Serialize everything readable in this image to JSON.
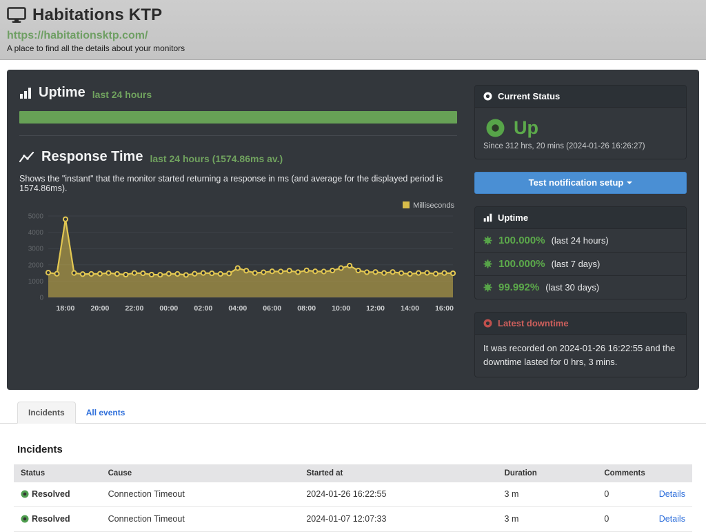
{
  "page": {
    "title": "Habitations KTP",
    "url": "https://habitationsktp.com/",
    "tagline": "A place to find all the details about your monitors"
  },
  "uptime_section": {
    "title": "Uptime",
    "subtitle": "last 24 hours"
  },
  "response_section": {
    "title": "Response Time",
    "subtitle": "last 24 hours (1574.86ms av.)",
    "description": "Shows the \"instant\" that the monitor started returning a response in ms (and average for the displayed period is 1574.86ms)."
  },
  "chart_data": {
    "type": "area",
    "title": "",
    "xlabel": "",
    "ylabel": "",
    "ylim": [
      0,
      5000
    ],
    "yticks": [
      0,
      1000,
      2000,
      3000,
      4000,
      5000
    ],
    "grid": true,
    "legend_position": "top-right",
    "x": [
      "17:00",
      "17:30",
      "18:00",
      "18:30",
      "19:00",
      "19:30",
      "20:00",
      "20:30",
      "21:00",
      "21:30",
      "22:00",
      "22:30",
      "23:00",
      "23:30",
      "00:00",
      "00:30",
      "01:00",
      "01:30",
      "02:00",
      "02:30",
      "03:00",
      "03:30",
      "04:00",
      "04:30",
      "05:00",
      "05:30",
      "06:00",
      "06:30",
      "07:00",
      "07:30",
      "08:00",
      "08:30",
      "09:00",
      "09:30",
      "10:00",
      "10:30",
      "11:00",
      "11:30",
      "12:00",
      "12:30",
      "13:00",
      "13:30",
      "14:00",
      "14:30",
      "15:00",
      "15:30",
      "16:00",
      "16:30"
    ],
    "xticks": [
      "18:00",
      "20:00",
      "22:00",
      "00:00",
      "02:00",
      "04:00",
      "06:00",
      "08:00",
      "10:00",
      "12:00",
      "14:00",
      "16:00"
    ],
    "series": [
      {
        "name": "Milliseconds",
        "color": "#d8bc4a",
        "values": [
          1520,
          1450,
          4800,
          1500,
          1430,
          1440,
          1450,
          1500,
          1440,
          1400,
          1500,
          1480,
          1400,
          1390,
          1450,
          1440,
          1380,
          1450,
          1500,
          1480,
          1440,
          1470,
          1800,
          1640,
          1500,
          1540,
          1600,
          1590,
          1640,
          1550,
          1660,
          1600,
          1590,
          1650,
          1800,
          1950,
          1650,
          1550,
          1560,
          1500,
          1560,
          1490,
          1440,
          1500,
          1510,
          1450,
          1500,
          1480
        ]
      }
    ],
    "average_ms": 1574.86
  },
  "sidebar": {
    "current_status": {
      "header": "Current Status",
      "status": "Up",
      "since": "Since 312 hrs, 20 mins (2024-01-26 16:26:27)"
    },
    "test_button_label": "Test notification setup",
    "uptime_panel": {
      "header": "Uptime",
      "rows": [
        {
          "value": "100.000%",
          "label": "(last 24 hours)"
        },
        {
          "value": "100.000%",
          "label": "(last 7 days)"
        },
        {
          "value": "99.992%",
          "label": "(last 30 days)"
        }
      ]
    },
    "latest_downtime": {
      "header": "Latest downtime",
      "text": "It was recorded on 2024-01-26 16:22:55 and the downtime lasted for 0 hrs, 3 mins."
    }
  },
  "tabs": [
    {
      "label": "Incidents",
      "active": true
    },
    {
      "label": "All events",
      "active": false
    }
  ],
  "incidents": {
    "heading": "Incidents",
    "columns": [
      "Status",
      "Cause",
      "Started at",
      "Duration",
      "Comments",
      ""
    ],
    "rows": [
      {
        "status": "Resolved",
        "cause": "Connection Timeout",
        "started_at": "2024-01-26 16:22:55",
        "duration": "3 m",
        "comments": "0",
        "details": "Details"
      },
      {
        "status": "Resolved",
        "cause": "Connection Timeout",
        "started_at": "2024-01-07 12:07:33",
        "duration": "3 m",
        "comments": "0",
        "details": "Details"
      }
    ]
  },
  "colors": {
    "panel_bg": "#33373c",
    "accent_green": "#5ca94b",
    "bar_green": "#67a156",
    "chart_gold": "#d8bc4a",
    "button_blue": "#4a8fd4",
    "downtime_red": "#cd5f5c",
    "link_blue": "#2e6fdb"
  }
}
